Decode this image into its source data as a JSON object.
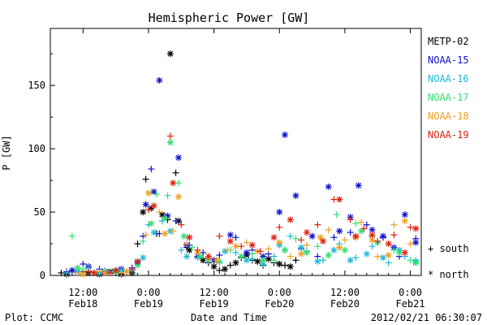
{
  "chart_data": {
    "type": "scatter",
    "title": "Hemispheric Power [GW]",
    "xlabel": "Date and Time",
    "ylabel": "P [GW]",
    "x_unit": "hours after 2012-02-18 00:00 UT",
    "xlim": [
      6,
      74
    ],
    "ylim": [
      0,
      195
    ],
    "yticks": [
      0,
      50,
      100,
      150
    ],
    "xticks": [
      {
        "value": 12,
        "time": "12:00",
        "date": "Feb18"
      },
      {
        "value": 24,
        "time": "0:00",
        "date": "Feb19"
      },
      {
        "value": 36,
        "time": "12:00",
        "date": "Feb19"
      },
      {
        "value": 48,
        "time": "0:00",
        "date": "Feb20"
      },
      {
        "value": 60,
        "time": "12:00",
        "date": "Feb20"
      },
      {
        "value": 72,
        "time": "0:00",
        "date": "Feb21"
      }
    ],
    "marker_legend": {
      "south": "+ south",
      "north": "* north"
    },
    "series": [
      {
        "name": "METP-02",
        "color": "#000000",
        "south": [
          [
            8,
            2
          ],
          [
            10,
            4
          ],
          [
            12,
            3
          ],
          [
            14,
            2
          ],
          [
            16,
            3
          ],
          [
            18,
            2
          ],
          [
            20,
            3
          ],
          [
            22,
            25
          ],
          [
            23.5,
            76
          ],
          [
            25.5,
            33
          ],
          [
            27.5,
            44
          ],
          [
            29,
            81
          ],
          [
            31,
            22
          ],
          [
            33,
            15
          ],
          [
            35,
            10
          ],
          [
            37,
            4
          ],
          [
            39,
            8
          ],
          [
            41,
            14
          ],
          [
            43,
            12
          ],
          [
            45,
            8
          ],
          [
            47,
            10
          ],
          [
            49,
            8
          ],
          [
            51,
            12
          ]
        ],
        "north": [
          [
            9,
            1
          ],
          [
            11,
            3
          ],
          [
            13,
            2
          ],
          [
            15,
            1
          ],
          [
            17,
            3
          ],
          [
            19,
            1
          ],
          [
            21,
            2
          ],
          [
            23,
            50
          ],
          [
            24.5,
            53
          ],
          [
            26.5,
            48
          ],
          [
            28,
            175
          ],
          [
            29.5,
            43
          ],
          [
            31.5,
            20
          ],
          [
            34,
            12
          ],
          [
            36,
            7
          ],
          [
            38,
            5
          ],
          [
            40,
            10
          ],
          [
            42,
            16
          ],
          [
            44,
            11
          ],
          [
            46,
            13
          ],
          [
            48,
            9
          ],
          [
            50,
            7
          ]
        ]
      },
      {
        "name": "NOAA-15",
        "color": "#1010d0",
        "south": [
          [
            9,
            3
          ],
          [
            12,
            9
          ],
          [
            15,
            5
          ],
          [
            18,
            4
          ],
          [
            21,
            6
          ],
          [
            23,
            31
          ],
          [
            24.5,
            84
          ],
          [
            26,
            33
          ],
          [
            29,
            43
          ],
          [
            31.5,
            24
          ],
          [
            34,
            18
          ],
          [
            37,
            16
          ],
          [
            40,
            30
          ],
          [
            43,
            20
          ],
          [
            46,
            17
          ],
          [
            49,
            20
          ],
          [
            52,
            21
          ],
          [
            55,
            15
          ],
          [
            58,
            30
          ],
          [
            61,
            34
          ],
          [
            64,
            40
          ],
          [
            67,
            30
          ],
          [
            70,
            15
          ],
          [
            73,
            29
          ]
        ],
        "north": [
          [
            10,
            4
          ],
          [
            13,
            7
          ],
          [
            16,
            3
          ],
          [
            19,
            5
          ],
          [
            22,
            10
          ],
          [
            23.5,
            56
          ],
          [
            25,
            66
          ],
          [
            26,
            154
          ],
          [
            27.5,
            47
          ],
          [
            29.5,
            93
          ],
          [
            31,
            24
          ],
          [
            33,
            15
          ],
          [
            36,
            12
          ],
          [
            39,
            32
          ],
          [
            42,
            18
          ],
          [
            45,
            15
          ],
          [
            48,
            50
          ],
          [
            49,
            111
          ],
          [
            51,
            63
          ],
          [
            54,
            31
          ],
          [
            57,
            70
          ],
          [
            59,
            35
          ],
          [
            61,
            46
          ],
          [
            62.5,
            71
          ],
          [
            65,
            36
          ],
          [
            67,
            31
          ],
          [
            69,
            22
          ],
          [
            71,
            48
          ],
          [
            73,
            26
          ]
        ]
      },
      {
        "name": "NOAA-16",
        "color": "#20b8d8",
        "south": [
          [
            9,
            2
          ],
          [
            13,
            6
          ],
          [
            17,
            3
          ],
          [
            21,
            4
          ],
          [
            24,
            40
          ],
          [
            26.5,
            43
          ],
          [
            30,
            20
          ],
          [
            33,
            14
          ],
          [
            37,
            10
          ],
          [
            40,
            18
          ],
          [
            43,
            13
          ],
          [
            47,
            15
          ],
          [
            50,
            31
          ],
          [
            53,
            19
          ],
          [
            56,
            12
          ],
          [
            59,
            25
          ],
          [
            62,
            14
          ],
          [
            65,
            23
          ],
          [
            68,
            10
          ],
          [
            71,
            15
          ],
          [
            73,
            12
          ]
        ],
        "north": [
          [
            11,
            3
          ],
          [
            15,
            2
          ],
          [
            19,
            4
          ],
          [
            23,
            14
          ],
          [
            25,
            34
          ],
          [
            28,
            35
          ],
          [
            31,
            15
          ],
          [
            35,
            12
          ],
          [
            38,
            19
          ],
          [
            42,
            12
          ],
          [
            45,
            9
          ],
          [
            48,
            24
          ],
          [
            52,
            22
          ],
          [
            55,
            11
          ],
          [
            58,
            20
          ],
          [
            61,
            12
          ],
          [
            64,
            17
          ],
          [
            67,
            14
          ],
          [
            70,
            20
          ],
          [
            73,
            11
          ]
        ]
      },
      {
        "name": "NOAA-17",
        "color": "#30e070",
        "south": [
          [
            10,
            31
          ],
          [
            12,
            5
          ],
          [
            16,
            4
          ],
          [
            20,
            3
          ],
          [
            23,
            27
          ],
          [
            25.5,
            64
          ],
          [
            27.5,
            63
          ],
          [
            29.5,
            73
          ],
          [
            32,
            22
          ],
          [
            35,
            12
          ],
          [
            39,
            20
          ],
          [
            43,
            17
          ],
          [
            47,
            12
          ],
          [
            51,
            29
          ],
          [
            55,
            23
          ],
          [
            58.5,
            48
          ],
          [
            62,
            41
          ],
          [
            65,
            31
          ],
          [
            69,
            20
          ],
          [
            72,
            12
          ]
        ],
        "north": [
          [
            11,
            6
          ],
          [
            14,
            2
          ],
          [
            18,
            3
          ],
          [
            22,
            8
          ],
          [
            24.5,
            41
          ],
          [
            27,
            45
          ],
          [
            28,
            105
          ],
          [
            30.5,
            31
          ],
          [
            33.5,
            15
          ],
          [
            37,
            11
          ],
          [
            41,
            15
          ],
          [
            45,
            12
          ],
          [
            49,
            20
          ],
          [
            53,
            18
          ],
          [
            57,
            16
          ],
          [
            60,
            20
          ],
          [
            63,
            35
          ],
          [
            66,
            26
          ],
          [
            70,
            18
          ],
          [
            73,
            10
          ]
        ]
      },
      {
        "name": "NOAA-18",
        "color": "#f0a020",
        "south": [
          [
            11,
            2
          ],
          [
            15,
            3
          ],
          [
            19,
            2
          ],
          [
            23.5,
            32
          ],
          [
            26,
            50
          ],
          [
            28.5,
            35
          ],
          [
            31,
            25
          ],
          [
            35,
            13
          ],
          [
            38.5,
            20
          ],
          [
            42,
            26
          ],
          [
            46,
            21
          ],
          [
            50,
            15
          ],
          [
            53,
            24
          ],
          [
            57,
            36
          ],
          [
            60,
            28
          ],
          [
            63,
            42
          ],
          [
            66,
            15
          ],
          [
            69,
            40
          ],
          [
            72,
            25
          ]
        ],
        "north": [
          [
            12,
            1
          ],
          [
            16,
            2
          ],
          [
            20,
            3
          ],
          [
            24,
            65
          ],
          [
            27,
            33
          ],
          [
            29.5,
            62
          ],
          [
            33,
            18
          ],
          [
            36.5,
            12
          ],
          [
            40,
            23
          ],
          [
            44,
            19
          ],
          [
            48,
            26
          ],
          [
            52,
            17
          ],
          [
            55.5,
            30
          ],
          [
            59,
            22
          ],
          [
            62,
            30
          ],
          [
            65,
            28
          ],
          [
            68,
            16
          ],
          [
            71,
            43
          ]
        ]
      },
      {
        "name": "NOAA-19",
        "color": "#e02010",
        "south": [
          [
            13,
            3
          ],
          [
            17,
            2
          ],
          [
            21,
            5
          ],
          [
            24,
            52
          ],
          [
            28,
            110
          ],
          [
            30,
            40
          ],
          [
            33,
            20
          ],
          [
            37,
            31
          ],
          [
            41,
            23
          ],
          [
            44.5,
            19
          ],
          [
            48,
            38
          ],
          [
            52,
            28
          ],
          [
            55,
            40
          ],
          [
            58,
            60
          ],
          [
            61,
            44
          ],
          [
            63.5,
            37
          ],
          [
            66,
            27
          ],
          [
            69,
            32
          ],
          [
            72,
            38
          ]
        ],
        "north": [
          [
            14,
            2
          ],
          [
            18,
            4
          ],
          [
            22,
            11
          ],
          [
            25,
            55
          ],
          [
            28.5,
            73
          ],
          [
            31.5,
            30
          ],
          [
            35,
            15
          ],
          [
            39,
            27
          ],
          [
            43,
            24
          ],
          [
            47,
            30
          ],
          [
            50,
            44
          ],
          [
            53,
            34
          ],
          [
            56,
            27
          ],
          [
            59,
            60
          ],
          [
            62,
            31
          ],
          [
            65,
            32
          ],
          [
            68,
            25
          ],
          [
            71,
            18
          ],
          [
            73,
            37
          ]
        ]
      }
    ]
  },
  "footer": {
    "left": "Plot: CCMC",
    "right": "2012/02/21 06:30:07"
  }
}
